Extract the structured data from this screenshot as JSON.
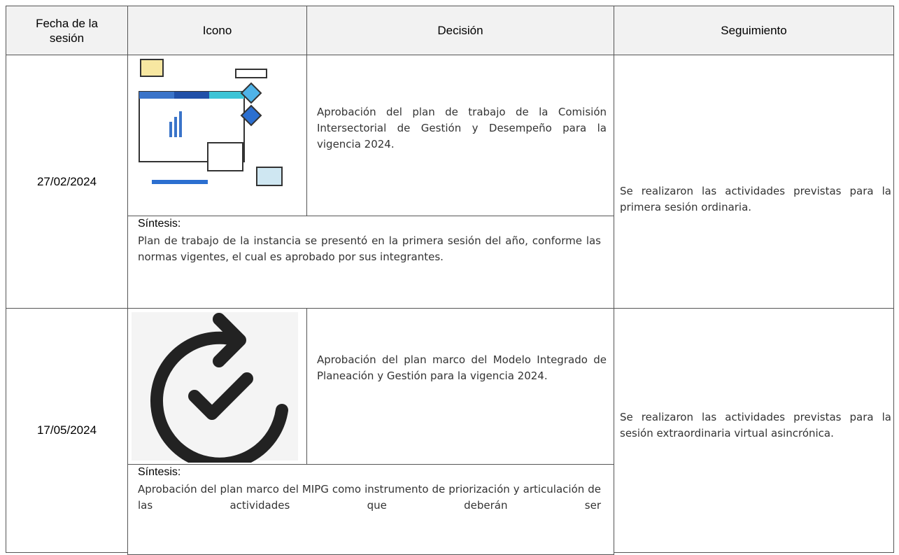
{
  "table": {
    "header": [
      "Fecha de la sesión",
      "Icono",
      "Decisión",
      "Seguimiento"
    ],
    "rows": [
      {
        "date": "27/02/2024",
        "decision": "Aprobación del plan de trabajo de la Comisión Intersectorial de Gestión y Desempeño para la vigencia 2024.",
        "synthesis_label": "Síntesis:",
        "synthesis": "Plan de trabajo de la instancia se presentó en la primera sesión del año, conforme las normas vigentes, el cual es aprobado por sus integrantes.",
        "followup": "Se realizaron las actividades previstas para la primera sesión ordinaria."
      },
      {
        "date": "17/05/2024",
        "decision": "Aprobación del plan marco del Modelo Integrado de Planeación y Gestión para la vigencia 2024.",
        "synthesis_label": "Síntesis:",
        "synthesis": "Aprobación del plan marco del MIPG como instrumento de priorización y articulación de las actividades que deberán ser",
        "followup": "Se realizaron las actividades previstas para la sesión extraordinaria virtual asincrónica."
      }
    ]
  }
}
